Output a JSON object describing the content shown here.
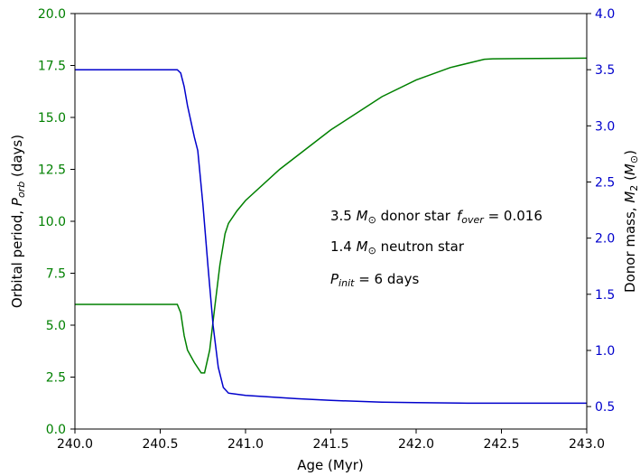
{
  "colors": {
    "period": "#008000",
    "mass": "#0000cc",
    "axis": "#000000"
  },
  "chart_data": {
    "type": "line",
    "xlabel": "Age (Myr)",
    "ylabel_left": "Orbital period, P_orb (days)",
    "ylabel_right": "Donor mass, M_2 (M_⊙)",
    "xlim": [
      240.0,
      243.0
    ],
    "ylim_left": [
      0.0,
      20.0
    ],
    "ylim_right": [
      0.3,
      4.0
    ],
    "x_ticks": [
      "240.0",
      "240.5",
      "241.0",
      "241.5",
      "242.0",
      "242.5",
      "243.0"
    ],
    "y_left_ticks": [
      "0.0",
      "2.5",
      "5.0",
      "7.5",
      "10.0",
      "12.5",
      "15.0",
      "17.5",
      "20.0"
    ],
    "y_right_ticks": [
      "0.5",
      "1.0",
      "1.5",
      "2.0",
      "2.5",
      "3.0",
      "3.5",
      "4.0"
    ],
    "annotations": {
      "line1a": "3.5 M_⊙ donor star",
      "line1b": "f_over = 0.016",
      "line2": "1.4 M_⊙ neutron star",
      "line3": "P_init = 6 days"
    },
    "series": [
      {
        "axis": "left",
        "color": "#008000",
        "x": [
          240.0,
          240.6,
          240.62,
          240.64,
          240.66,
          240.7,
          240.74,
          240.76,
          240.79,
          240.82,
          240.85,
          240.88,
          240.9,
          240.95,
          241.0,
          241.2,
          241.5,
          241.8,
          242.0,
          242.2,
          242.4,
          242.45,
          242.6,
          243.0
        ],
        "y": [
          6.0,
          6.0,
          5.6,
          4.5,
          3.8,
          3.2,
          2.7,
          2.7,
          3.8,
          5.9,
          7.9,
          9.4,
          9.9,
          10.5,
          11.0,
          12.5,
          14.4,
          16.0,
          16.8,
          17.4,
          17.8,
          17.82,
          17.83,
          17.85
        ]
      },
      {
        "axis": "right",
        "color": "#0000cc",
        "x": [
          240.0,
          240.6,
          240.62,
          240.64,
          240.66,
          240.7,
          240.72,
          240.75,
          240.78,
          240.81,
          240.84,
          240.87,
          240.9,
          241.0,
          241.3,
          241.5,
          241.8,
          242.0,
          242.3,
          242.5,
          243.0
        ],
        "y": [
          3.5,
          3.5,
          3.47,
          3.35,
          3.18,
          2.9,
          2.78,
          2.3,
          1.75,
          1.22,
          0.85,
          0.67,
          0.62,
          0.6,
          0.57,
          0.555,
          0.54,
          0.535,
          0.53,
          0.53,
          0.53
        ]
      }
    ]
  }
}
